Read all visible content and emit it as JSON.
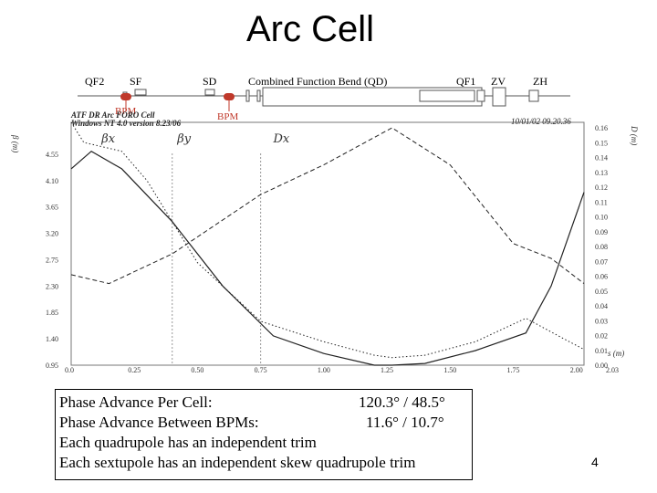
{
  "title": "Arc Cell",
  "lattice": {
    "labels": [
      "QF2",
      "SF",
      "SD",
      "Combined Function Bend (QD)",
      "QF1",
      "ZV",
      "ZH"
    ],
    "bpm_label": "BPM"
  },
  "plot_header": {
    "line1": "ATF DR Arc FORO Cell",
    "line2": "Windows NT 4.0 version 8.23/06",
    "date": "10/01/02  09.20.36",
    "markers": [
      "βx",
      "βy",
      "Dx"
    ]
  },
  "chart_data": {
    "type": "line",
    "xlabel": "s (m)",
    "ylabel_left": "β (m)",
    "ylabel_right": "D (m)",
    "xlim": [
      0.0,
      2.03
    ],
    "ylim_left": [
      0.95,
      5.0
    ],
    "ylim_right": [
      0.0,
      0.16
    ],
    "x_ticks": [
      "0.0",
      "0.25",
      "0.50",
      "0.75",
      "1.00",
      "1.25",
      "1.50",
      "1.75",
      "2.00",
      "2.03"
    ],
    "y_left_ticks": [
      "4.55",
      "4.10",
      "3.65",
      "3.20",
      "2.75",
      "2.30",
      "1.85",
      "1.40",
      "0.95"
    ],
    "y_right_ticks": [
      "0.16",
      "0.15",
      "0.14",
      "0.13",
      "0.12",
      "0.11",
      "0.10",
      "0.09",
      "0.08",
      "0.07",
      "0.06",
      "0.05",
      "0.04",
      "0.03",
      "0.02",
      "0.01",
      "0.00"
    ],
    "series": [
      {
        "name": "βx",
        "axis": "left",
        "style": "solid",
        "x": [
          0.0,
          0.08,
          0.2,
          0.4,
          0.6,
          0.8,
          1.0,
          1.2,
          1.27,
          1.4,
          1.6,
          1.8,
          1.9,
          2.03
        ],
        "y": [
          4.3,
          4.6,
          4.3,
          3.4,
          2.3,
          1.45,
          1.15,
          0.95,
          0.9,
          0.98,
          1.2,
          1.5,
          2.3,
          3.9
        ]
      },
      {
        "name": "βy",
        "axis": "left",
        "style": "dotted",
        "x": [
          0.0,
          0.05,
          0.2,
          0.3,
          0.5,
          0.75,
          1.0,
          1.2,
          1.27,
          1.4,
          1.6,
          1.8,
          1.95,
          2.03
        ],
        "y": [
          5.5,
          4.75,
          4.6,
          4.1,
          2.7,
          1.7,
          1.35,
          1.12,
          1.08,
          1.12,
          1.35,
          1.75,
          1.4,
          1.22
        ]
      },
      {
        "name": "Dx",
        "axis": "right",
        "style": "dashed",
        "x": [
          0.0,
          0.15,
          0.4,
          0.75,
          1.0,
          1.27,
          1.5,
          1.75,
          1.9,
          2.03
        ],
        "y": [
          0.061,
          0.055,
          0.075,
          0.115,
          0.135,
          0.16,
          0.135,
          0.082,
          0.072,
          0.055
        ]
      }
    ]
  },
  "notes": [
    {
      "label": "Phase Advance Per Cell:",
      "value": "120.3° / 48.5°"
    },
    {
      "label": "Phase Advance Between BPMs:",
      "value": "11.6° / 10.7°"
    },
    {
      "label": "Each quadrupole has an independent trim",
      "value": ""
    },
    {
      "label": "Each sextupole has an independent skew quadrupole trim",
      "value": ""
    }
  ],
  "page_number": "4"
}
